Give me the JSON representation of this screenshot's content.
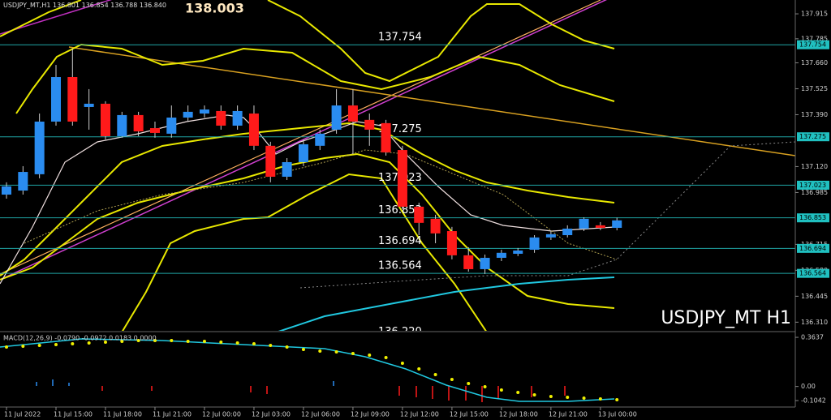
{
  "header": {
    "symbol": "USDJPY_MT,H1",
    "ohlc": [
      "136.801",
      "136.854",
      "136.788",
      "136.840"
    ]
  },
  "chart_data": {
    "type": "candlestick",
    "annotation": "138.003",
    "watermark": "USDJPY_MT H1",
    "categories": [
      "11 Jul 2022",
      null,
      null,
      "11 Jul 15:00",
      null,
      null,
      "11 Jul 18:00",
      null,
      null,
      "11 Jul 21:00",
      null,
      null,
      "12 Jul 00:00",
      null,
      null,
      "12 Jul 03:00",
      null,
      null,
      "12 Jul 06:00",
      null,
      null,
      "12 Jul 09:00",
      null,
      null,
      "12 Jul 12:00",
      null,
      null,
      "12 Jul 15:00",
      null,
      null,
      "12 Jul 18:00",
      null,
      null,
      "12 Jul 21:00",
      null,
      null,
      "13 Jul 00:00",
      null
    ],
    "open": [
      136.974,
      136.995,
      137.08,
      137.354,
      137.586,
      137.43,
      137.447,
      137.278,
      137.388,
      137.32,
      137.291,
      137.375,
      137.396,
      137.409,
      137.333,
      137.396,
      137.228,
      137.067,
      137.143,
      137.228,
      137.312,
      137.438,
      137.363,
      137.346,
      137.206,
      136.911,
      136.848,
      136.784,
      136.658,
      136.586,
      136.645,
      136.666,
      136.687,
      136.751,
      136.763,
      136.797,
      136.814,
      136.801
    ],
    "high": [
      137.038,
      137.122,
      137.396,
      137.649,
      137.734,
      137.523,
      137.46,
      137.405,
      137.405,
      137.354,
      137.438,
      137.438,
      137.438,
      137.438,
      137.438,
      137.438,
      137.249,
      137.164,
      137.261,
      137.312,
      137.523,
      137.523,
      137.396,
      137.363,
      137.228,
      136.932,
      136.869,
      136.806,
      136.7,
      136.662,
      136.687,
      136.696,
      136.763,
      136.784,
      136.814,
      136.856,
      136.831,
      136.854
    ],
    "low": [
      136.953,
      136.974,
      137.059,
      137.333,
      137.333,
      137.312,
      137.261,
      137.27,
      137.278,
      137.27,
      137.27,
      137.354,
      137.375,
      137.312,
      137.312,
      137.206,
      137.038,
      137.05,
      137.122,
      137.206,
      137.291,
      137.185,
      137.228,
      137.177,
      136.898,
      136.763,
      136.721,
      136.637,
      136.573,
      136.561,
      136.628,
      136.654,
      136.671,
      136.738,
      136.751,
      136.784,
      136.789,
      136.788
    ],
    "close": [
      137.017,
      137.092,
      137.354,
      137.586,
      137.354,
      137.447,
      137.278,
      137.388,
      137.303,
      137.295,
      137.375,
      137.405,
      137.417,
      137.333,
      137.409,
      137.228,
      137.067,
      137.143,
      137.236,
      137.291,
      137.438,
      137.354,
      137.312,
      137.194,
      136.911,
      136.827,
      136.772,
      136.658,
      136.586,
      136.645,
      136.671,
      136.683,
      136.751,
      136.768,
      136.797,
      136.848,
      136.801,
      136.84
    ],
    "up_color": "#2a8cf0",
    "down_color": "#ff1a1a",
    "level_color": "#1fa5a5",
    "levels": [
      137.754,
      137.275,
      137.023,
      136.853,
      136.694,
      136.564,
      {
        "value": 136.22,
        "label": "136.220"
      }
    ],
    "ylim": [
      136.265,
      137.987
    ],
    "yticks": [
      137.915,
      137.785,
      {
        "value": 137.66,
        "label": "137.660"
      },
      137.525,
      {
        "value": 137.39,
        "label": "137.390"
      },
      {
        "value": 137.12,
        "label": "137.120"
      },
      136.985,
      136.715,
      {
        "value": 136.58,
        "label": "136.580"
      },
      136.445,
      {
        "value": 136.31,
        "label": "136.310"
      }
    ],
    "macd": {
      "label": "MACD(12,26,9) -0.0790 -0.0972 0.0183 0.0000",
      "ylim": [
        -0.14,
        0.4
      ],
      "yticks": [
        0.3637,
        {
          "value": 0,
          "label": "0.00"
        },
        -0.1042
      ]
    }
  }
}
